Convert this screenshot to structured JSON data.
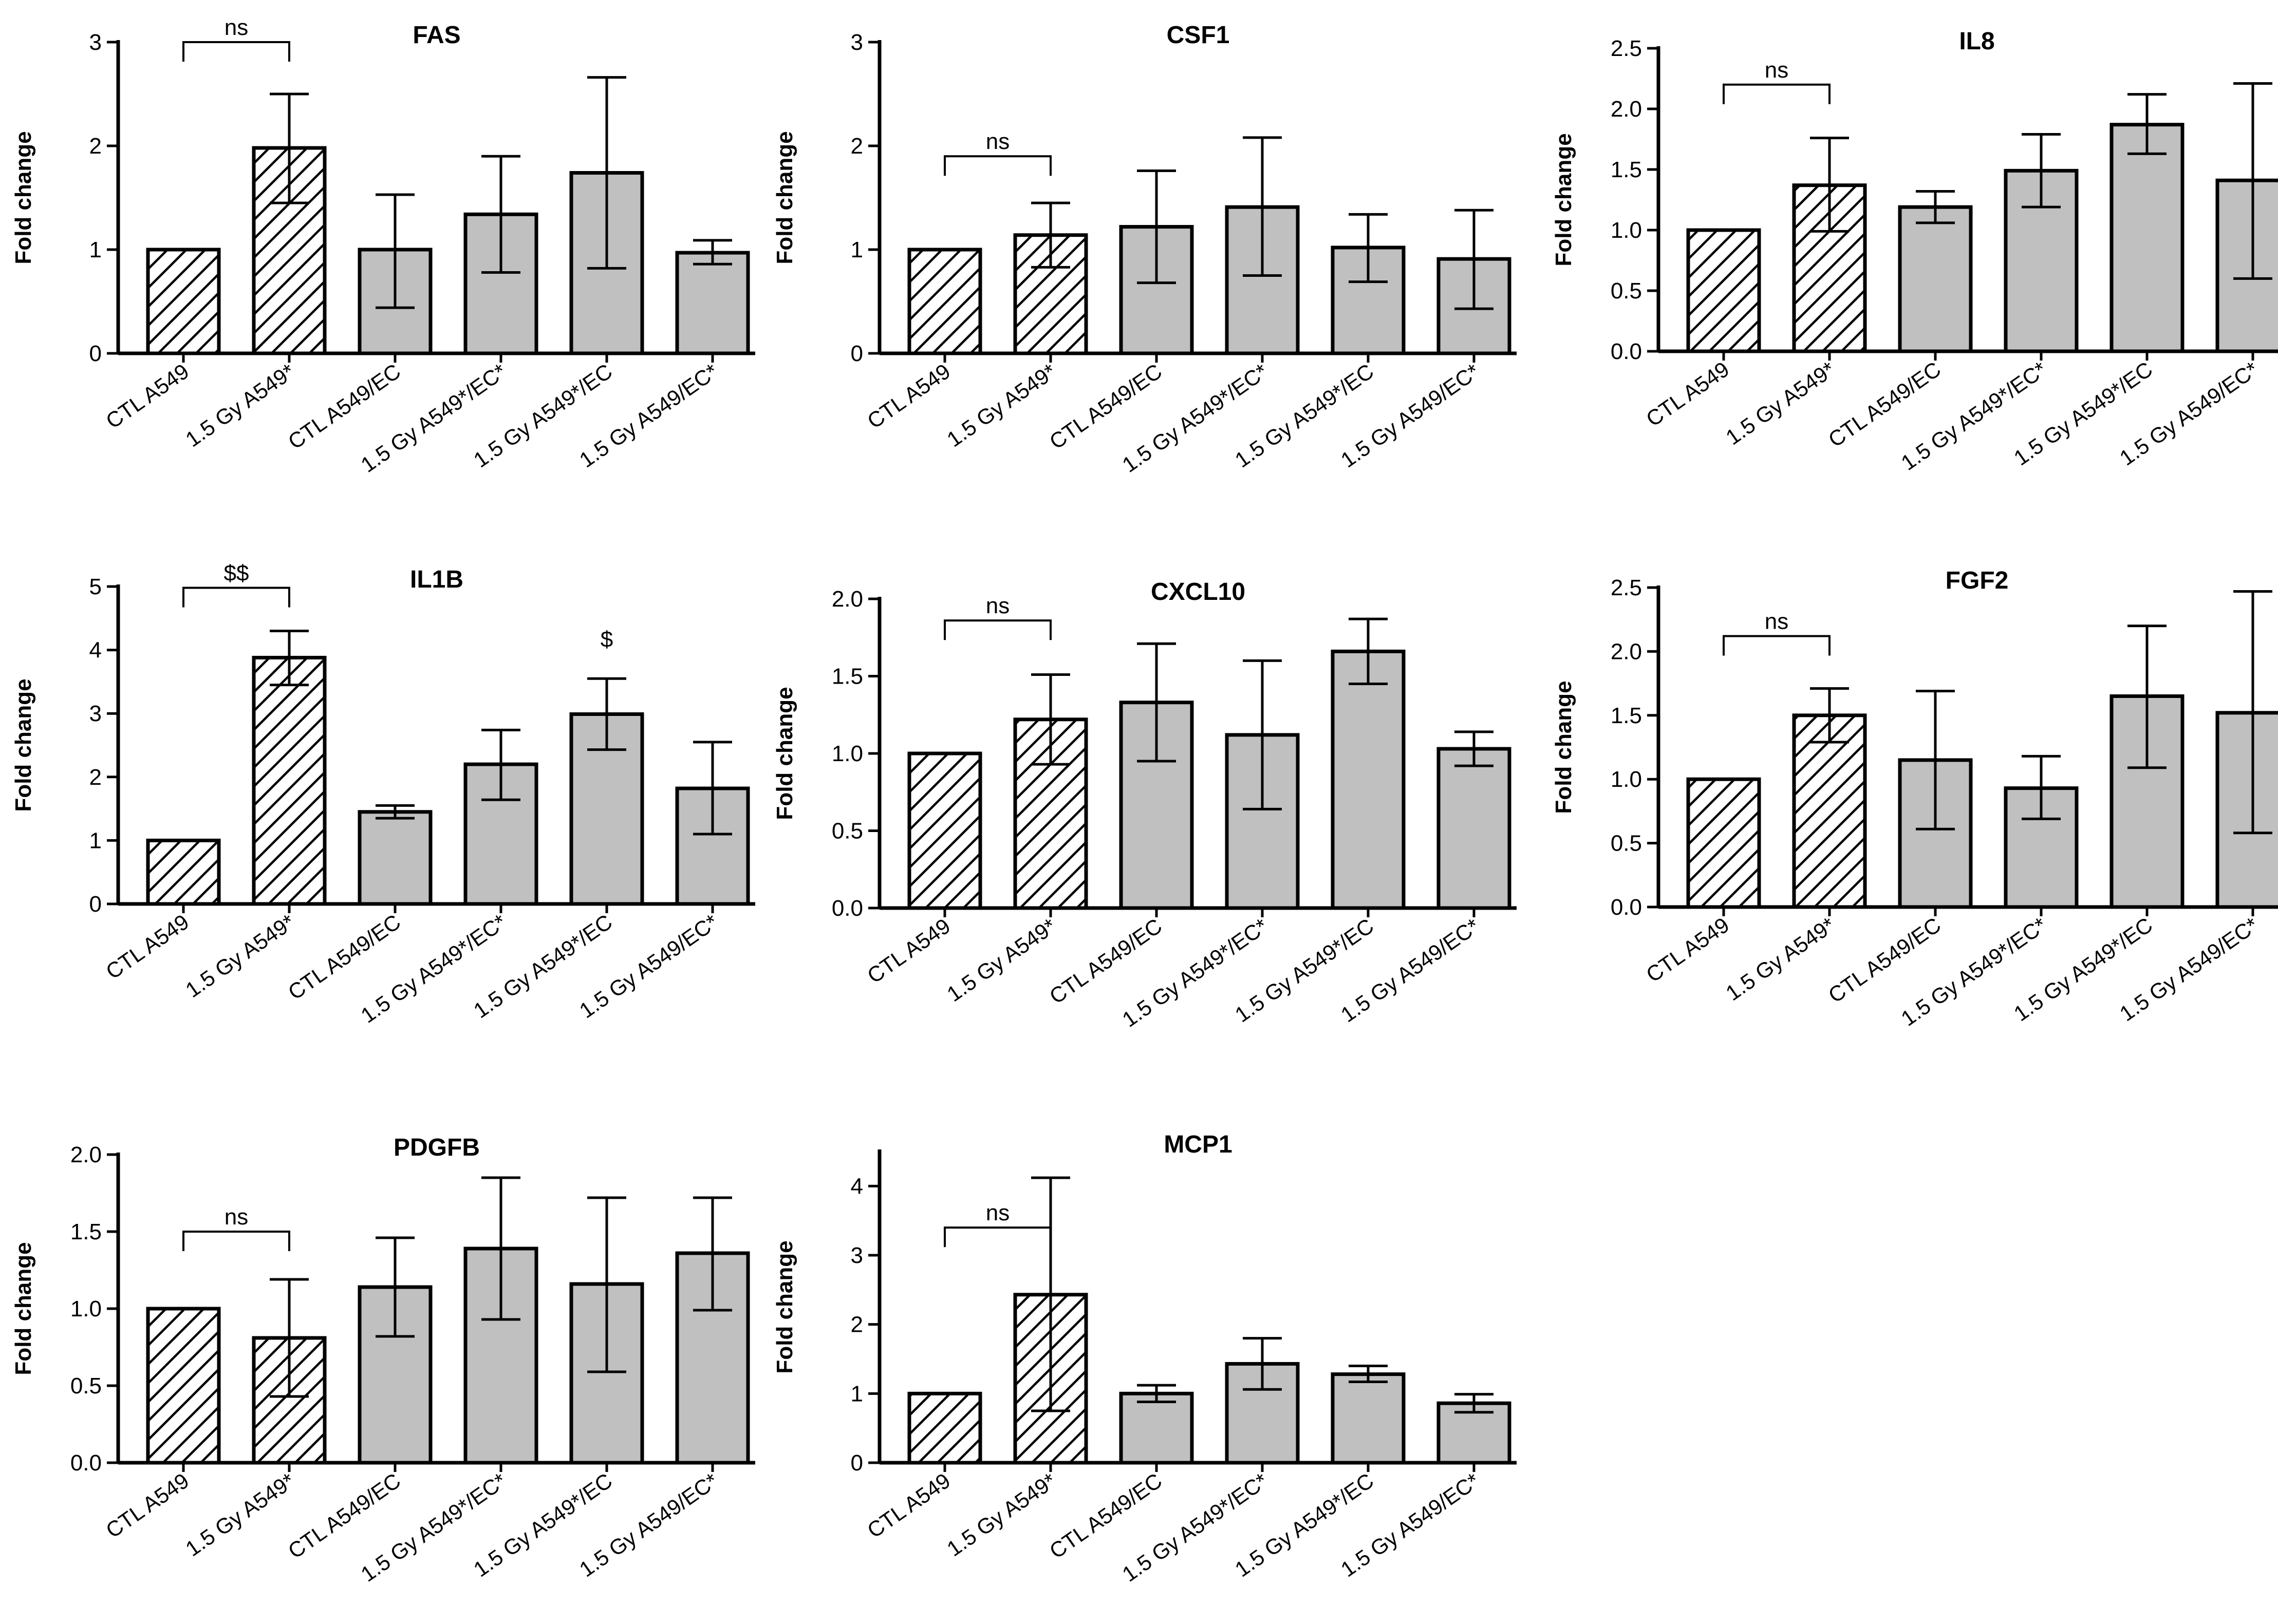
{
  "figure": {
    "hatch_fill_color": "#ffffff",
    "gray_fill_color": "#c0c0c0",
    "stroke_color": "#000000",
    "background": "#ffffff"
  },
  "chart_data": [
    {
      "type": "bar",
      "title": "FAS",
      "ylabel": "Fold change",
      "ylim": [
        0,
        3
      ],
      "yticks": [
        "0",
        "1",
        "2",
        "3"
      ],
      "categories": [
        "CTL A549",
        "1.5 Gy A549*",
        "CTL A549/EC",
        "1.5 Gy A549*/EC*",
        "1.5 Gy A549*/EC",
        "1.5 Gy A549/EC*"
      ],
      "values": [
        1.0,
        1.98,
        1.0,
        1.34,
        1.74,
        0.97
      ],
      "err_low": [
        1.0,
        1.45,
        0.44,
        0.78,
        0.82,
        0.86
      ],
      "err_high": [
        1.0,
        2.5,
        1.53,
        1.9,
        2.66,
        1.09
      ],
      "hatched": [
        true,
        true,
        false,
        false,
        false,
        false
      ],
      "annotations": [
        {
          "text": "ns",
          "type": "bracket",
          "from": 0,
          "to": 1,
          "y": 3.0
        }
      ]
    },
    {
      "type": "bar",
      "title": "CSF1",
      "ylabel": "Fold change",
      "ylim": [
        0,
        3
      ],
      "yticks": [
        "0",
        "1",
        "2",
        "3"
      ],
      "categories": [
        "CTL A549",
        "1.5 Gy A549*",
        "CTL A549/EC",
        "1.5 Gy A549*/EC*",
        "1.5 Gy A549*/EC",
        "1.5 Gy A549/EC*"
      ],
      "values": [
        1.0,
        1.14,
        1.22,
        1.41,
        1.02,
        0.91
      ],
      "err_low": [
        1.0,
        0.83,
        0.68,
        0.75,
        0.69,
        0.43
      ],
      "err_high": [
        1.0,
        1.45,
        1.76,
        2.08,
        1.34,
        1.38
      ],
      "hatched": [
        true,
        true,
        false,
        false,
        false,
        false
      ],
      "annotations": [
        {
          "text": "ns",
          "type": "bracket",
          "from": 0,
          "to": 1,
          "y": 1.9
        }
      ]
    },
    {
      "type": "bar",
      "title": "IL8",
      "ylabel": "Fold change",
      "ylim": [
        0,
        2.5
      ],
      "yticks": [
        "0.0",
        "0.5",
        "1.0",
        "1.5",
        "2.0",
        "2.5"
      ],
      "categories": [
        "CTL A549",
        "1.5 Gy A549*",
        "CTL A549/EC",
        "1.5 Gy A549*/EC*",
        "1.5 Gy A549*/EC",
        "1.5 Gy A549/EC*"
      ],
      "values": [
        1.0,
        1.37,
        1.19,
        1.49,
        1.87,
        1.41
      ],
      "err_low": [
        1.0,
        0.99,
        1.06,
        1.19,
        1.63,
        0.6
      ],
      "err_high": [
        1.0,
        1.76,
        1.32,
        1.79,
        2.12,
        2.21
      ],
      "hatched": [
        true,
        true,
        false,
        false,
        false,
        false
      ],
      "annotations": [
        {
          "text": "ns",
          "type": "bracket",
          "from": 0,
          "to": 1,
          "y": 2.2
        }
      ]
    },
    {
      "type": "bar",
      "title": "IL1B",
      "ylabel": "Fold change",
      "ylim": [
        0,
        5
      ],
      "yticks": [
        "0",
        "1",
        "2",
        "3",
        "4",
        "5"
      ],
      "categories": [
        "CTL A549",
        "1.5 Gy A549*",
        "CTL A549/EC",
        "1.5 Gy A549*/EC*",
        "1.5 Gy A549*/EC",
        "1.5 Gy A549/EC*"
      ],
      "values": [
        1.0,
        3.88,
        1.45,
        2.2,
        2.99,
        1.82
      ],
      "err_low": [
        1.0,
        3.45,
        1.35,
        1.64,
        2.43,
        1.1
      ],
      "err_high": [
        1.0,
        4.3,
        1.55,
        2.74,
        3.55,
        2.55
      ],
      "hatched": [
        true,
        true,
        false,
        false,
        false,
        false
      ],
      "annotations": [
        {
          "text": "$$",
          "type": "bracket",
          "from": 0,
          "to": 1,
          "y": 4.98
        },
        {
          "text": "$",
          "type": "label",
          "at": 4,
          "y": 4.05
        }
      ]
    },
    {
      "type": "bar",
      "title": "CXCL10",
      "ylabel": "Fold change",
      "ylim": [
        0,
        2.0
      ],
      "yticks": [
        "0.0",
        "0.5",
        "1.0",
        "1.5",
        "2.0"
      ],
      "categories": [
        "CTL A549",
        "1.5 Gy A549*",
        "CTL A549/EC",
        "1.5 Gy A549*/EC*",
        "1.5 Gy A549*/EC",
        "1.5 Gy A549/EC*"
      ],
      "values": [
        1.0,
        1.22,
        1.33,
        1.12,
        1.66,
        1.03
      ],
      "err_low": [
        1.0,
        0.93,
        0.95,
        0.64,
        1.45,
        0.92
      ],
      "err_high": [
        1.0,
        1.51,
        1.71,
        1.6,
        1.87,
        1.14
      ],
      "hatched": [
        true,
        true,
        false,
        false,
        false,
        false
      ],
      "annotations": [
        {
          "text": "ns",
          "type": "bracket",
          "from": 0,
          "to": 1,
          "y": 1.86
        }
      ]
    },
    {
      "type": "bar",
      "title": "FGF2",
      "ylabel": "Fold change",
      "ylim": [
        0,
        2.5
      ],
      "yticks": [
        "0.0",
        "0.5",
        "1.0",
        "1.5",
        "2.0",
        "2.5"
      ],
      "categories": [
        "CTL A549",
        "1.5 Gy A549*",
        "CTL A549/EC",
        "1.5 Gy A549*/EC*",
        "1.5 Gy A549*/EC",
        "1.5 Gy A549/EC*"
      ],
      "values": [
        1.0,
        1.5,
        1.15,
        0.93,
        1.65,
        1.52
      ],
      "err_low": [
        1.0,
        1.29,
        0.61,
        0.69,
        1.09,
        0.58
      ],
      "err_high": [
        1.0,
        1.71,
        1.69,
        1.18,
        2.2,
        2.47
      ],
      "hatched": [
        true,
        true,
        false,
        false,
        false,
        false
      ],
      "annotations": [
        {
          "text": "ns",
          "type": "bracket",
          "from": 0,
          "to": 1,
          "y": 2.12
        }
      ]
    },
    {
      "type": "bar",
      "title": "PDGFB",
      "ylabel": "Fold change",
      "ylim": [
        0,
        2.0
      ],
      "yticks": [
        "0.0",
        "0.5",
        "1.0",
        "1.5",
        "2.0"
      ],
      "categories": [
        "CTL A549",
        "1.5 Gy A549*",
        "CTL A549/EC",
        "1.5 Gy A549*/EC*",
        "1.5 Gy A549*/EC",
        "1.5 Gy A549/EC*"
      ],
      "values": [
        1.0,
        0.81,
        1.14,
        1.39,
        1.16,
        1.36
      ],
      "err_low": [
        1.0,
        0.43,
        0.82,
        0.93,
        0.59,
        0.99
      ],
      "err_high": [
        1.0,
        1.19,
        1.46,
        1.85,
        1.72,
        1.72
      ],
      "hatched": [
        true,
        true,
        false,
        false,
        false,
        false
      ],
      "annotations": [
        {
          "text": "ns",
          "type": "bracket",
          "from": 0,
          "to": 1,
          "y": 1.5
        }
      ]
    },
    {
      "type": "bar",
      "title": "MCP1",
      "ylabel": "Fold change",
      "ylim": [
        0,
        4.5
      ],
      "yticks": [
        "0",
        "1",
        "2",
        "3",
        "4"
      ],
      "categories": [
        "CTL A549",
        "1.5 Gy A549*",
        "CTL A549/EC",
        "1.5 Gy A549*/EC*",
        "1.5 Gy A549*/EC",
        "1.5 Gy A549/EC*"
      ],
      "values": [
        1.0,
        2.43,
        1.0,
        1.43,
        1.28,
        0.86
      ],
      "err_low": [
        1.0,
        0.75,
        0.88,
        1.06,
        1.17,
        0.73
      ],
      "err_high": [
        1.0,
        4.12,
        1.12,
        1.8,
        1.4,
        0.99
      ],
      "hatched": [
        true,
        true,
        false,
        false,
        false,
        false
      ],
      "annotations": [
        {
          "text": "ns",
          "type": "bracket",
          "from": 0,
          "to": 1,
          "y": 3.4
        }
      ]
    }
  ]
}
